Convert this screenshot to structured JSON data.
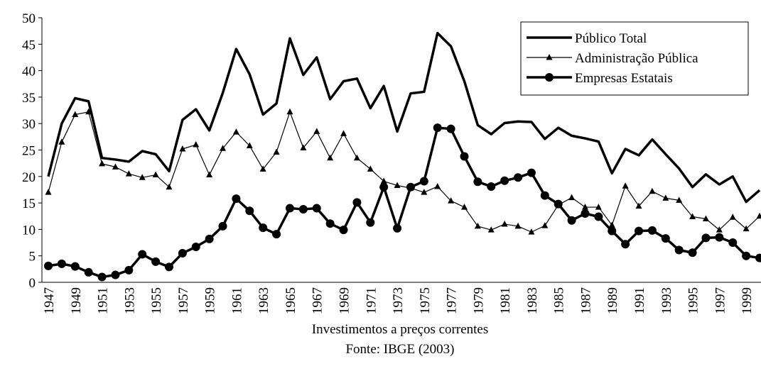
{
  "chart_data": {
    "type": "line",
    "categories": [
      "1947",
      null,
      "1949",
      null,
      "1951",
      null,
      "1953",
      null,
      "1955",
      null,
      "1957",
      null,
      "1959",
      null,
      "1961",
      null,
      "1963",
      null,
      "1965",
      null,
      "1967",
      null,
      "1969",
      null,
      "1971",
      null,
      "1973",
      null,
      "1975",
      null,
      "1977",
      null,
      "1979",
      null,
      "1981",
      null,
      "1983",
      null,
      "1985",
      null,
      "1987",
      null,
      "1989",
      null,
      "1991",
      null,
      "1993",
      null,
      "1995",
      null,
      "1997",
      null,
      "1999",
      null
    ],
    "series": [
      {
        "name": "Público Total",
        "color": "#000000",
        "marker": "none",
        "line_width": 3.5,
        "values": [
          20,
          30,
          34.8,
          34.2,
          23.5,
          23.2,
          22.8,
          24.8,
          24.2,
          21,
          30.7,
          32.7,
          28.7,
          35.8,
          44.1,
          39.3,
          31.7,
          33.8,
          46.1,
          39.2,
          42.5,
          34.6,
          38,
          38.5,
          32.9,
          37.1,
          28.5,
          35.7,
          36,
          47.1,
          44.6,
          38,
          29.7,
          28,
          30.1,
          30.4,
          30.3,
          27.1,
          29.2,
          27.7,
          27.2,
          26.6,
          20.6,
          25.2,
          24,
          27,
          24.2,
          21.5,
          18,
          20.4,
          18.5,
          20,
          15.2,
          17.4
        ]
      },
      {
        "name": "Administração Pública",
        "color": "#000000",
        "marker": "triangle",
        "line_width": 1.2,
        "values": [
          17,
          26.5,
          31.7,
          32.2,
          22.4,
          21.8,
          20.5,
          19.8,
          20.3,
          18,
          25.2,
          26,
          20.3,
          25.3,
          28.4,
          25.8,
          21.4,
          24.6,
          32.2,
          25.4,
          28.5,
          23.5,
          28.1,
          23.5,
          21.4,
          19.1,
          18.3,
          17.8,
          17,
          18.1,
          15.4,
          14.2,
          10.6,
          9.9,
          11,
          10.6,
          9.5,
          10.7,
          14.6,
          16,
          14.2,
          14.2,
          10.8,
          18.2,
          14.4,
          17.2,
          15.9,
          15.5,
          12.4,
          12,
          9.9,
          12.3,
          10.1,
          12.5
        ]
      },
      {
        "name": "Empresas Estatais",
        "color": "#000000",
        "marker": "circle",
        "line_width": 3.5,
        "values": [
          3.1,
          3.5,
          3,
          1.9,
          1,
          1.4,
          2.3,
          5.3,
          3.9,
          2.9,
          5.5,
          6.7,
          8.2,
          10.6,
          15.8,
          13.5,
          10.3,
          9.1,
          14,
          13.8,
          14,
          11.1,
          9.9,
          15.1,
          11.3,
          18,
          10.2,
          18,
          19.1,
          29.2,
          29,
          23.8,
          19,
          18.1,
          19.2,
          19.8,
          20.7,
          16.4,
          14.8,
          11.7,
          13,
          12.4,
          9.7,
          7.2,
          9.7,
          9.8,
          8.3,
          6.1,
          5.6,
          8.4,
          8.5,
          7.5,
          5,
          4.6
        ]
      }
    ],
    "ylim": [
      0,
      50
    ],
    "yticks": [
      0,
      5,
      10,
      15,
      20,
      25,
      30,
      35,
      40,
      45,
      50
    ],
    "grid": false,
    "legend": "top-right",
    "caption": [
      "Investimentos a preços correntes",
      "Fonte: IBGE (2003)"
    ]
  }
}
